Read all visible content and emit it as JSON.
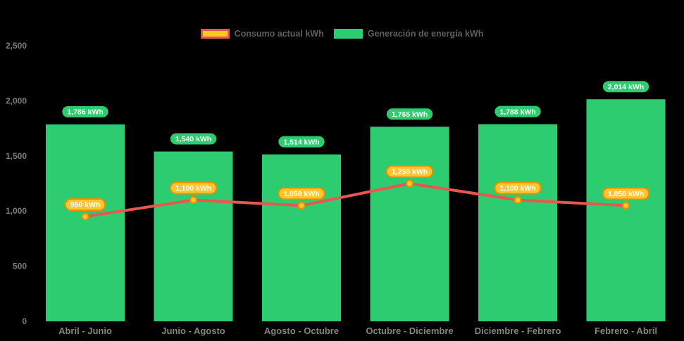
{
  "legend": [
    {
      "label": "Consumo actual kWh",
      "swatch_fill": "#fdc62e",
      "swatch_border": "#e8564d"
    },
    {
      "label": "Generación de energía kWh",
      "swatch_fill": "#2ecc71",
      "swatch_border": "#2ecc71"
    }
  ],
  "colors": {
    "background": "#000000",
    "bar": "#2ecc71",
    "line": "#e8564d",
    "point_fill": "#fdc62e",
    "point_border": "#f08c00",
    "bar_pill_fill": "#2ecc71",
    "line_pill_fill": "#fdc62e",
    "line_pill_border": "#f08c00",
    "pill_text": "#ffffff",
    "axis_text": "#7e7e7e"
  },
  "chart_data": {
    "type": "bar+line",
    "title": "",
    "categories": [
      "Abril - Junio",
      "Junio - Agosto",
      "Agosto - Octubre",
      "Octubre - Diciembre",
      "Diciembre - Febrero",
      "Febrero - Abril"
    ],
    "series": [
      {
        "name": "Generación de energía kWh",
        "type": "bar",
        "color": "#2ecc71",
        "values": [
          1786,
          1540,
          1514,
          1765,
          1788,
          2014
        ],
        "value_labels": [
          "1,786 kWh",
          "1,540 kWh",
          "1,514 kWh",
          "1,765 kWh",
          "1,788 kWh",
          "2,014 kWh"
        ]
      },
      {
        "name": "Consumo actual kWh",
        "type": "line",
        "color": "#e8564d",
        "values": [
          950,
          1100,
          1050,
          1250,
          1100,
          1050
        ],
        "value_labels": [
          "950 kWh",
          "1,100 kWh",
          "1,050 kWh",
          "1,250 kWh",
          "1,100 kWh",
          "1,050 kWh"
        ]
      }
    ],
    "ylim": [
      0,
      2500
    ],
    "yticks": [
      0,
      500,
      1000,
      1500,
      2000,
      2500
    ],
    "ytick_labels": [
      "0",
      "500",
      "1,000",
      "1,500",
      "2,000",
      "2,500"
    ],
    "grid": false,
    "legend_position": "top-center"
  }
}
